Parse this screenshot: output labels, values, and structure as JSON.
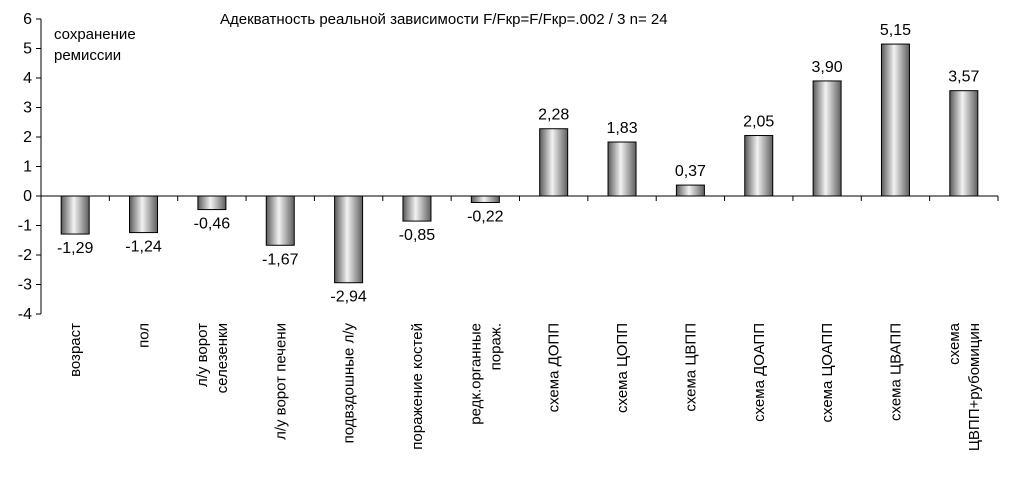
{
  "chart_data": {
    "type": "bar",
    "title": "Адекватность реальной зависимости  F/Fкр=F/Fкр=.002 / 3  n= 24",
    "ylabel_lines": [
      "сохранение",
      "ремиссии"
    ],
    "ylim": [
      -4,
      6
    ],
    "yticks": [
      6,
      5,
      4,
      3,
      2,
      1,
      0,
      -1,
      -2,
      -3,
      -4
    ],
    "categories": [
      [
        "возраст"
      ],
      [
        "пол"
      ],
      [
        "л/у ворот",
        "селезенки"
      ],
      [
        "л/у ворот печени"
      ],
      [
        "подвздошные л/у"
      ],
      [
        "поражение костей"
      ],
      [
        "редк.органные",
        "пораж."
      ],
      [
        "схема ДОПП"
      ],
      [
        "схема ЦОПП"
      ],
      [
        "схема ЦВПП"
      ],
      [
        "схема ДОАПП"
      ],
      [
        "схема ЦОАПП"
      ],
      [
        "схема ЦВАПП"
      ],
      [
        "схема",
        "ЦВПП+рубомицин"
      ]
    ],
    "values": [
      -1.29,
      -1.24,
      -0.46,
      -1.67,
      -2.94,
      -0.85,
      -0.22,
      2.28,
      1.83,
      0.37,
      2.05,
      3.9,
      5.15,
      3.57
    ],
    "value_labels": [
      "-1,29",
      "-1,24",
      "-0,46",
      "-1,67",
      "-2,94",
      "-0,85",
      "-0,22",
      "2,28",
      "1,83",
      "0,37",
      "2,05",
      "3,90",
      "5,15",
      "3,57"
    ]
  }
}
